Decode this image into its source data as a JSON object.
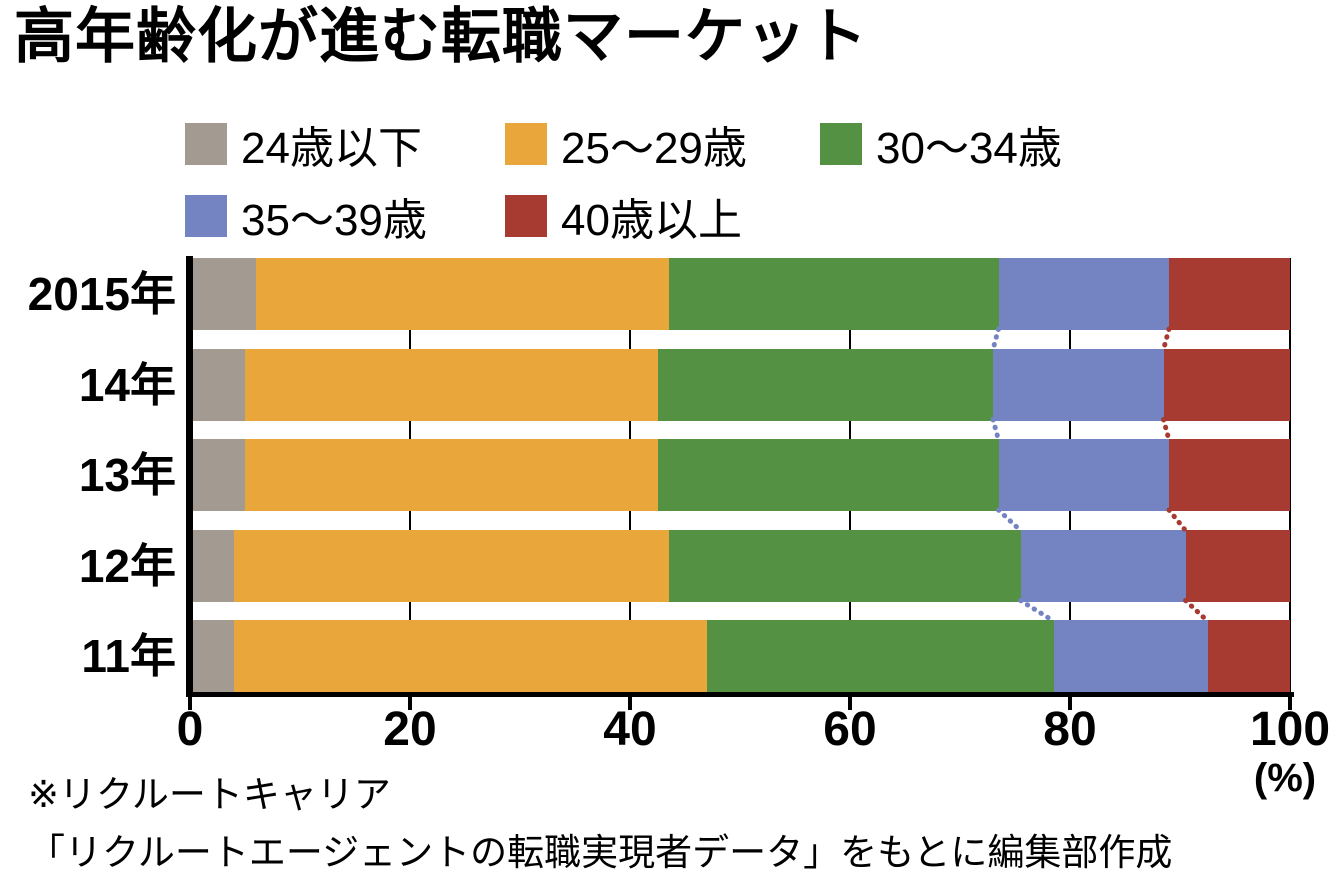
{
  "title": "高年齢化が進む転職マーケット",
  "chart_data": {
    "type": "bar",
    "orientation": "horizontal",
    "stacked": true,
    "title": "高年齢化が進む転職マーケット",
    "categories": [
      "2015年",
      "14年",
      "13年",
      "12年",
      "11年"
    ],
    "series": [
      {
        "name": "24歳以下",
        "color": "#a39a92",
        "values": [
          6,
          5,
          5,
          4,
          4
        ]
      },
      {
        "name": "25〜29歳",
        "color": "#e9a63a",
        "values": [
          37.5,
          37.5,
          37.5,
          39.5,
          43
        ]
      },
      {
        "name": "30〜34歳",
        "color": "#549143",
        "values": [
          30,
          30.5,
          31,
          32,
          31.5
        ]
      },
      {
        "name": "35〜39歳",
        "color": "#7484c2",
        "values": [
          15.5,
          15.5,
          15.5,
          15,
          14
        ]
      },
      {
        "name": "40歳以上",
        "color": "#a73a31",
        "values": [
          11,
          11.5,
          11,
          9.5,
          7.5
        ]
      }
    ],
    "x_ticks": [
      0,
      20,
      40,
      60,
      80,
      100
    ],
    "xlim": [
      0,
      100
    ],
    "x_unit": "(%)",
    "grid": "vertical-black-lines",
    "legend_position": "top",
    "connector_boundaries": [
      "30〜34歳/35〜39歳 (blue dotted)",
      "35〜39歳/40歳以上 (red dotted)"
    ]
  },
  "source": {
    "line1": "※リクルートキャリア",
    "line2": "「リクルートエージェントの転職実現者データ」をもとに編集部作成"
  }
}
